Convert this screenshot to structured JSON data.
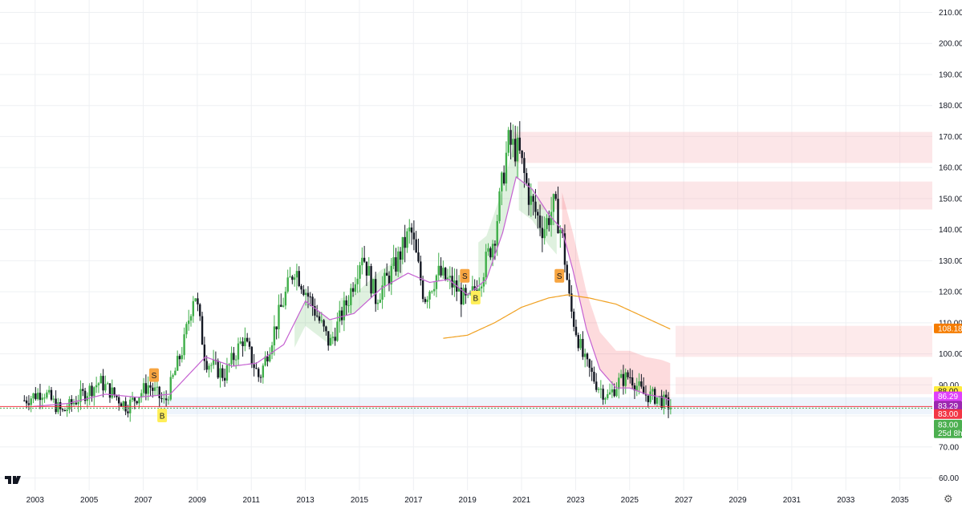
{
  "chart_data": {
    "type": "candlestick",
    "xlim": [
      2001.7,
      2036.2
    ],
    "ylim": [
      56,
      214
    ],
    "x_ticks": [
      "2003",
      "2005",
      "2007",
      "2009",
      "2011",
      "2013",
      "2015",
      "2017",
      "2019",
      "2021",
      "2023",
      "2025",
      "2027",
      "2029",
      "2031",
      "2033",
      "2035"
    ],
    "y_ticks": [
      "60.00",
      "70.00",
      "80.00",
      "90.00",
      "100.00",
      "110.00",
      "120.00",
      "130.00",
      "140.00",
      "150.00",
      "160.00",
      "170.00",
      "180.00",
      "190.00",
      "200.00",
      "210.00"
    ],
    "key_points": [
      {
        "t": 2002.6,
        "v": 85
      },
      {
        "t": 2003.3,
        "v": 88
      },
      {
        "t": 2004.0,
        "v": 81
      },
      {
        "t": 2004.5,
        "v": 85
      },
      {
        "t": 2005.4,
        "v": 91
      },
      {
        "t": 2006.4,
        "v": 83
      },
      {
        "t": 2007.2,
        "v": 90
      },
      {
        "t": 2007.8,
        "v": 84
      },
      {
        "t": 2008.5,
        "v": 103
      },
      {
        "t": 2008.9,
        "v": 121
      },
      {
        "t": 2009.3,
        "v": 98
      },
      {
        "t": 2010.0,
        "v": 93
      },
      {
        "t": 2010.7,
        "v": 105
      },
      {
        "t": 2011.3,
        "v": 92
      },
      {
        "t": 2012.0,
        "v": 112
      },
      {
        "t": 2012.6,
        "v": 128
      },
      {
        "t": 2013.3,
        "v": 115
      },
      {
        "t": 2013.9,
        "v": 103
      },
      {
        "t": 2014.6,
        "v": 118
      },
      {
        "t": 2015.1,
        "v": 133
      },
      {
        "t": 2015.6,
        "v": 118
      },
      {
        "t": 2016.3,
        "v": 128
      },
      {
        "t": 2016.9,
        "v": 140
      },
      {
        "t": 2017.4,
        "v": 118
      },
      {
        "t": 2017.9,
        "v": 126
      },
      {
        "t": 2018.5,
        "v": 122
      },
      {
        "t": 2019.0,
        "v": 116
      },
      {
        "t": 2019.5,
        "v": 125
      },
      {
        "t": 2020.0,
        "v": 138
      },
      {
        "t": 2020.5,
        "v": 168
      },
      {
        "t": 2020.9,
        "v": 165
      },
      {
        "t": 2021.3,
        "v": 150
      },
      {
        "t": 2021.8,
        "v": 140
      },
      {
        "t": 2022.2,
        "v": 148
      },
      {
        "t": 2022.5,
        "v": 138
      },
      {
        "t": 2022.8,
        "v": 115
      },
      {
        "t": 2023.3,
        "v": 98
      },
      {
        "t": 2023.8,
        "v": 90
      },
      {
        "t": 2024.2,
        "v": 86
      },
      {
        "t": 2024.6,
        "v": 91
      },
      {
        "t": 2025.0,
        "v": 93
      },
      {
        "t": 2025.5,
        "v": 87
      },
      {
        "t": 2026.0,
        "v": 86
      },
      {
        "t": 2026.5,
        "v": 83
      }
    ],
    "current_line": 83.0,
    "series": [
      {
        "name": "",
        "kind": "ma-purple",
        "color": "#c561d1",
        "points": [
          [
            2002.9,
            83
          ],
          [
            2004.2,
            84
          ],
          [
            2005.6,
            87
          ],
          [
            2006.8,
            86
          ],
          [
            2008.0,
            87
          ],
          [
            2009.3,
            99
          ],
          [
            2010.3,
            96
          ],
          [
            2011.2,
            97
          ],
          [
            2012.2,
            103
          ],
          [
            2013.0,
            117
          ],
          [
            2013.9,
            111
          ],
          [
            2014.8,
            113
          ],
          [
            2015.8,
            121
          ],
          [
            2016.8,
            126
          ],
          [
            2017.6,
            123
          ],
          [
            2018.3,
            124
          ],
          [
            2019.0,
            119
          ],
          [
            2019.7,
            124
          ],
          [
            2020.3,
            139
          ],
          [
            2020.8,
            157
          ],
          [
            2021.4,
            153
          ],
          [
            2022.0,
            145
          ],
          [
            2022.5,
            140
          ],
          [
            2022.9,
            127
          ],
          [
            2023.4,
            108
          ],
          [
            2023.9,
            95
          ],
          [
            2024.5,
            89
          ],
          [
            2025.0,
            89
          ],
          [
            2025.6,
            87
          ],
          [
            2026.2,
            86
          ],
          [
            2026.5,
            85
          ]
        ]
      },
      {
        "name": "",
        "kind": "ma-orange",
        "color": "#f0a020",
        "points": [
          [
            2018.1,
            105
          ],
          [
            2019.0,
            106
          ],
          [
            2020.0,
            110
          ],
          [
            2021.0,
            115
          ],
          [
            2022.0,
            118
          ],
          [
            2022.7,
            119
          ],
          [
            2023.5,
            118
          ],
          [
            2024.5,
            116
          ],
          [
            2025.5,
            112
          ],
          [
            2026.5,
            108
          ]
        ]
      }
    ],
    "signals": [
      {
        "label": "S",
        "t": 2007.4,
        "v": 93,
        "kind": "sell"
      },
      {
        "label": "B",
        "t": 2007.7,
        "v": 80,
        "kind": "buy"
      },
      {
        "label": "S",
        "t": 2018.9,
        "v": 125,
        "kind": "sell"
      },
      {
        "label": "B",
        "t": 2019.3,
        "v": 118,
        "kind": "buy"
      },
      {
        "label": "S",
        "t": 2022.4,
        "v": 125,
        "kind": "sell"
      }
    ],
    "zones": [
      {
        "x0": 2020.7,
        "x1": 2036.2,
        "y0": 161.5,
        "y1": 171.5,
        "color": "#f7b8bc",
        "opacity": 0.35
      },
      {
        "x0": 2021.6,
        "x1": 2036.2,
        "y0": 146.5,
        "y1": 155.5,
        "color": "#f7b8bc",
        "opacity": 0.35
      },
      {
        "x0": 2026.7,
        "x1": 2036.2,
        "y0": 99.0,
        "y1": 109.0,
        "color": "#f7b8bc",
        "opacity": 0.3
      },
      {
        "x0": 2026.7,
        "x1": 2036.2,
        "y0": 87.0,
        "y1": 92.5,
        "color": "#f7b8bc",
        "opacity": 0.25
      },
      {
        "x0": 2007.6,
        "x1": 2036.2,
        "y0": 80.5,
        "y1": 86.0,
        "color": "#cfe0f7",
        "opacity": 0.35
      }
    ],
    "price_tags": [
      {
        "text": "108.18",
        "v": 108.18,
        "bg": "#f57c00",
        "fg": "#ffffff"
      },
      {
        "text": "88.00",
        "v": 88.0,
        "bg": "#ffeb3b",
        "fg": "#131722"
      },
      {
        "text": "86.29",
        "v": 86.29,
        "bg": "#e040fb",
        "fg": "#ffffff"
      },
      {
        "text": "83.29",
        "v": 83.29,
        "bg": "#9c27b0",
        "fg": "#ffffff"
      },
      {
        "text": "83.00",
        "v": 80.6,
        "bg": "#f23645",
        "fg": "#ffffff"
      },
      {
        "text": "83.00",
        "v": 77.2,
        "bg": "#4caf50",
        "fg": "#ffffff"
      },
      {
        "text": "25d 8h",
        "v": 74.4,
        "bg": "#4caf50",
        "fg": "#ffffff"
      }
    ],
    "colors": {
      "up": "#26a69a",
      "down": "#131722",
      "up_bar": "#3fae49",
      "grid": "#eef0f3",
      "ma_fill_up": "#4caf50",
      "ma_fill_down": "#f23645"
    }
  },
  "ui": {
    "logo": "TV",
    "settings_icon": "gear-icon"
  }
}
